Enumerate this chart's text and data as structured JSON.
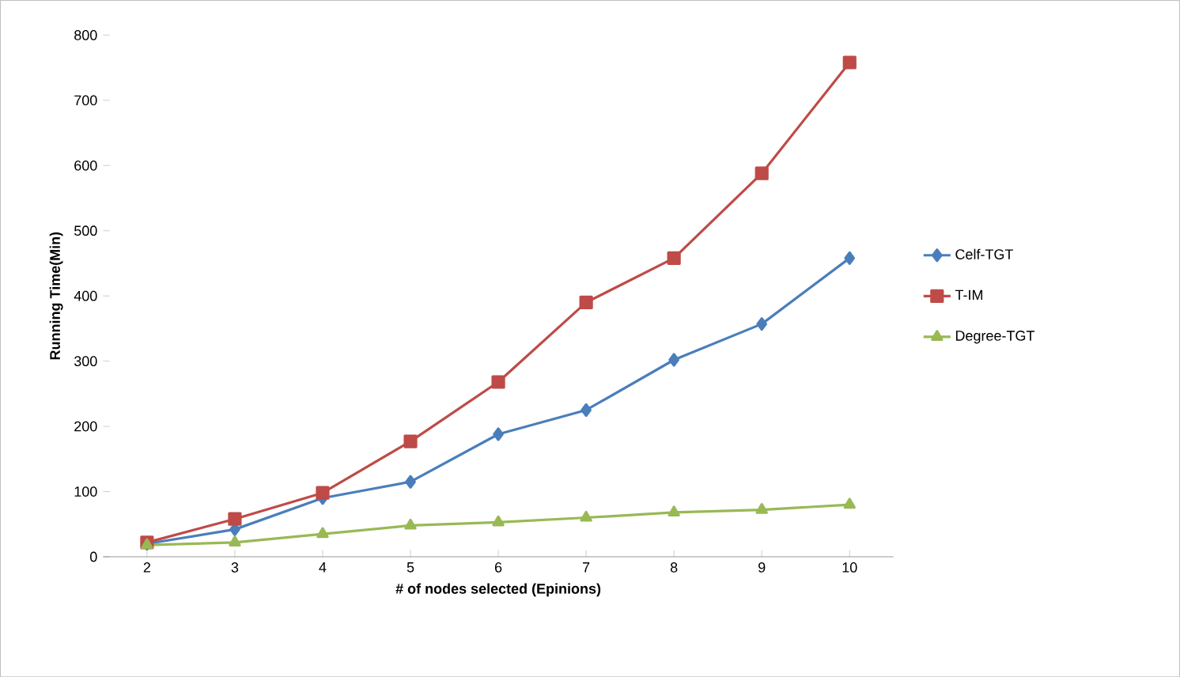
{
  "chart_data": {
    "type": "line",
    "xlabel": "# of nodes selected (Epinions)",
    "ylabel": "Running Time(Min)",
    "categories": [
      "2",
      "3",
      "4",
      "5",
      "6",
      "7",
      "8",
      "9",
      "10"
    ],
    "series": [
      {
        "name": "Celf-TGT",
        "color": "#4a7ebb",
        "marker": "diamond",
        "values": [
          20,
          42,
          90,
          115,
          188,
          225,
          302,
          357,
          458
        ]
      },
      {
        "name": "T-IM",
        "color": "#be4b48",
        "marker": "square",
        "values": [
          22,
          58,
          98,
          177,
          268,
          390,
          458,
          588,
          758
        ]
      },
      {
        "name": "Degree-TGT",
        "color": "#98b954",
        "marker": "triangle",
        "values": [
          18,
          22,
          35,
          48,
          53,
          60,
          68,
          72,
          80
        ]
      }
    ],
    "ylim": [
      0,
      800
    ],
    "yticks": [
      0,
      100,
      200,
      300,
      400,
      500,
      600,
      700,
      800
    ],
    "grid": false,
    "legend": "right"
  }
}
